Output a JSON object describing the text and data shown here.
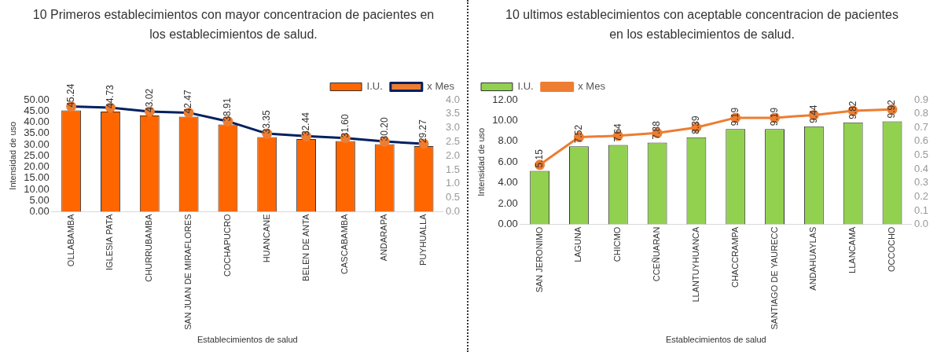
{
  "chart_data": [
    {
      "type": "bar",
      "title": "10 Primeros establecimientos con mayor concentracion de pacientes en los establecimientos de salud.",
      "xlabel": "Establecimientos de salud",
      "ylabel": "Intensidad de uso",
      "categories": [
        "OLLABAMBA",
        "IGLESIA PATA",
        "CHURRUBAMBA",
        "SAN JUAN DE MIRAFLORES",
        "COCHAPUCRO",
        "HUANCANE",
        "BELEN DE ANTA",
        "CASCABAMBA",
        "ANDARAPA",
        "PUYHUALLA"
      ],
      "series": [
        {
          "name": "I.U.",
          "color": "#ff6600",
          "values": [
            45.24,
            44.73,
            43.02,
            42.47,
            38.91,
            33.35,
            32.44,
            31.6,
            30.2,
            29.27
          ],
          "value_labels": [
            "45.24",
            "44.73",
            "43.02",
            "42.47",
            "38.91",
            "33.35",
            "32.44",
            "31.60",
            "30.20",
            "29.27"
          ]
        },
        {
          "name": "x Mes",
          "type": "line",
          "axis": "y2",
          "color": "#002060",
          "colors": [
            "#ed7d31",
            "#ed7d31",
            "#ed7d31",
            "#ed7d31",
            "#ed7d31",
            "#ed7d31",
            "#ed7d31",
            "#ed7d31",
            "#ed7d31",
            "#ed7d31"
          ],
          "values": [
            3.76,
            3.72,
            3.58,
            3.54,
            3.23,
            2.79,
            2.7,
            2.63,
            2.51,
            2.43
          ]
        }
      ],
      "ylim": [
        0,
        50
      ],
      "yticks": [
        {
          "value": 0,
          "label": "0.00"
        },
        {
          "value": 5,
          "label": "5.00"
        },
        {
          "value": 10,
          "label": "10.00"
        },
        {
          "value": 15,
          "label": "15.00"
        },
        {
          "value": 20,
          "label": "20.00"
        },
        {
          "value": 25,
          "label": "25.00"
        },
        {
          "value": 30,
          "label": "30.00"
        },
        {
          "value": 35,
          "label": "35.00"
        },
        {
          "value": 40,
          "label": "40.00"
        },
        {
          "value": 45,
          "label": "45.00"
        },
        {
          "value": 50,
          "label": "50.00"
        }
      ],
      "y2lim": [
        0,
        4
      ],
      "y2ticks": [
        {
          "value": 0,
          "label": "0.0"
        },
        {
          "value": 0.5,
          "label": "0.5"
        },
        {
          "value": 1,
          "label": "1.0"
        },
        {
          "value": 1.5,
          "label": "1.5"
        },
        {
          "value": 2,
          "label": "2.0"
        },
        {
          "value": 2.5,
          "label": "2.5"
        },
        {
          "value": 3,
          "label": "3.0"
        },
        {
          "value": 3.5,
          "label": "3.5"
        },
        {
          "value": 4,
          "label": "4.0"
        }
      ],
      "grid": false,
      "legend": "top right",
      "marker": "circle"
    },
    {
      "type": "bar",
      "title": "10 ultimos establecimientos con aceptable concentracion de pacientes en los establecimientos de salud.",
      "xlabel": "Establecimientos de salud",
      "ylabel": "Intensidad de uso",
      "categories": [
        "SAN JERONIMO",
        "LAGUNA",
        "CHICMO",
        "CCEÑUARAN",
        "LLANTUYHUANCA",
        "CHACCRAMPA",
        "SANTIAGO DE YAURECC",
        "ANDAHUAYLAS",
        "LLANCAMA",
        "OCCOCHO"
      ],
      "series": [
        {
          "name": "I.U.",
          "color": "#92d050",
          "values": [
            5.15,
            7.52,
            7.64,
            7.88,
            8.39,
            9.19,
            9.19,
            9.44,
            9.82,
            9.92
          ],
          "value_labels": [
            "5.15",
            "7.52",
            "7.64",
            "7.88",
            "8.39",
            "9.19",
            "9.19",
            "9.44",
            "9.82",
            "9.92"
          ]
        },
        {
          "name": "x Mes",
          "type": "line",
          "axis": "y2",
          "color": "#ed7d31",
          "values": [
            0.43,
            0.63,
            0.64,
            0.66,
            0.7,
            0.77,
            0.77,
            0.79,
            0.82,
            0.83
          ]
        }
      ],
      "ylim": [
        0,
        12
      ],
      "yticks": [
        {
          "value": 0,
          "label": "0.00"
        },
        {
          "value": 2,
          "label": "2.00"
        },
        {
          "value": 4,
          "label": "4.00"
        },
        {
          "value": 6,
          "label": "6.00"
        },
        {
          "value": 8,
          "label": "8.00"
        },
        {
          "value": 10,
          "label": "10.00"
        },
        {
          "value": 12,
          "label": "12.00"
        }
      ],
      "y2lim": [
        0,
        0.9
      ],
      "y2ticks": [
        {
          "value": 0,
          "label": "0.0"
        },
        {
          "value": 0.1,
          "label": "0.1"
        },
        {
          "value": 0.2,
          "label": "0.2"
        },
        {
          "value": 0.3,
          "label": "0.3"
        },
        {
          "value": 0.4,
          "label": "0.4"
        },
        {
          "value": 0.5,
          "label": "0.5"
        },
        {
          "value": 0.6,
          "label": "0.6"
        },
        {
          "value": 0.7,
          "label": "0.7"
        },
        {
          "value": 0.8,
          "label": "0.8"
        },
        {
          "value": 0.9,
          "label": "0.9"
        }
      ],
      "grid": false,
      "legend": "top left",
      "marker": "circle"
    }
  ]
}
